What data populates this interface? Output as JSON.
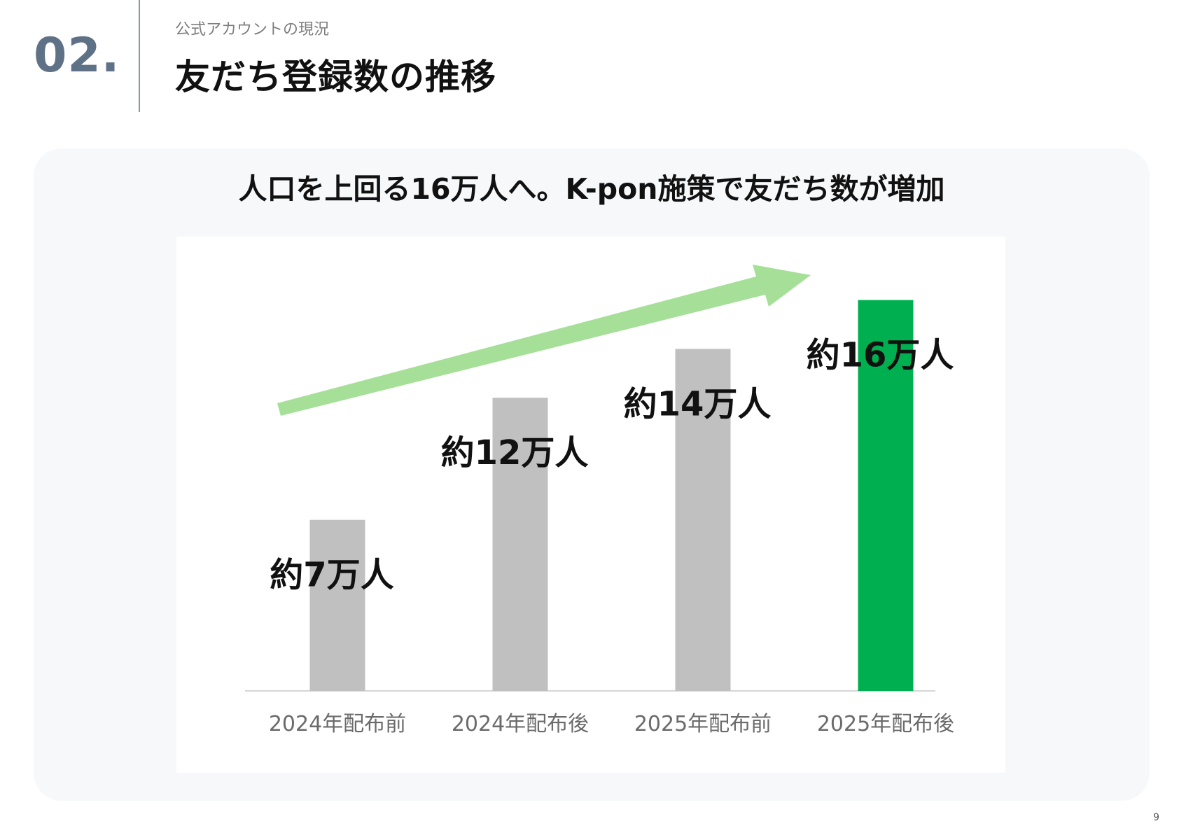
{
  "header": {
    "section_number": "02.",
    "subtitle": "公式アカウントの現況",
    "title": "友だち登録数の推移"
  },
  "panel": {
    "headline": "人口を上回る16万人へ。K-pon施策で友だち数が増加"
  },
  "page_number": "9",
  "colors": {
    "bar_default": "#c0c0c0",
    "bar_highlight": "#00b050",
    "trend_arrow": "#a6df98",
    "section_number": "#5f7187"
  },
  "chart_data": {
    "type": "bar",
    "categories": [
      "2024年配布前",
      "2024年配布後",
      "2025年配布前",
      "2025年配布後"
    ],
    "values": [
      7,
      12,
      14,
      16
    ],
    "value_labels": [
      "約7万人",
      "約12万人",
      "約14万人",
      "約16万人"
    ],
    "highlight_index": 3,
    "ylim": [
      0,
      18
    ],
    "grid": false,
    "legend": "none",
    "trend_arrow": true
  }
}
